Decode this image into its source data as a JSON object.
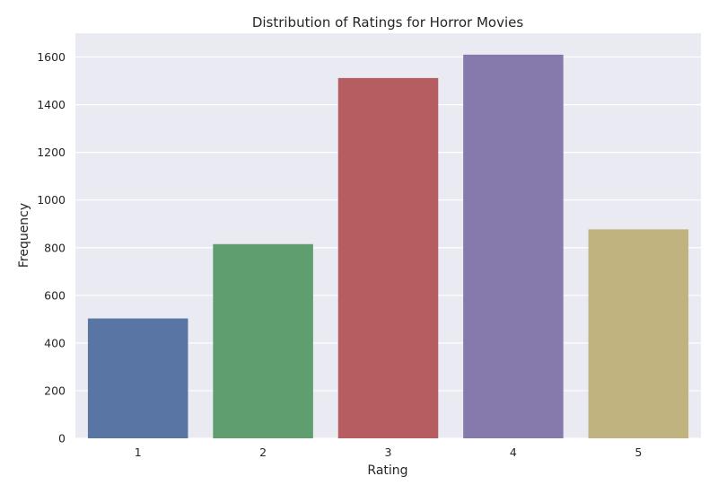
{
  "chart_data": {
    "type": "bar",
    "title": "Distribution of Ratings for Horror Movies",
    "xlabel": "Rating",
    "ylabel": "Frequency",
    "categories": [
      "1",
      "2",
      "3",
      "4",
      "5"
    ],
    "values": [
      503,
      815,
      1512,
      1610,
      877
    ],
    "colors": [
      "#5975a4",
      "#5f9e6e",
      "#b55d60",
      "#857aab",
      "#c1b37f"
    ],
    "ylim": [
      0,
      1700
    ],
    "yticks": [
      0,
      200,
      400,
      600,
      800,
      1000,
      1200,
      1400,
      1600
    ],
    "grid": true,
    "legend": "none",
    "background": "#eaeaf2",
    "grid_color": "#ffffff"
  }
}
